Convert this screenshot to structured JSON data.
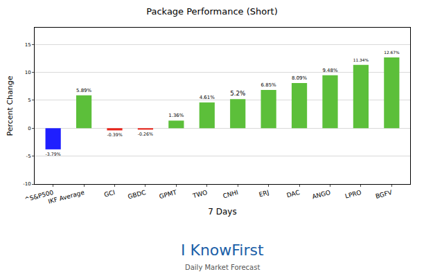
{
  "chart_data": {
    "type": "bar",
    "title": "Package Performance (Short)",
    "x_label": "7 Days",
    "y_label": "Percent Change",
    "categories": [
      "^S&P500",
      "IKF Average",
      "GCI",
      "GBDC",
      "GPMT",
      "TWO",
      "CNHI",
      "ERJ",
      "DAC",
      "ANGO",
      "LPRO",
      "BGFV"
    ],
    "values": [
      -3.79,
      5.89,
      -0.39,
      -0.26,
      1.36,
      4.61,
      5.2,
      6.85,
      8.09,
      9.48,
      11.34,
      12.67
    ],
    "value_labels": [
      "-3.79%",
      "5.89%",
      "-0.39%",
      "-0.26%",
      "1.36%",
      "4.61%",
      "5.2%",
      "6.85%",
      "8.09%",
      "9.48%",
      "11.34%",
      "12.67%"
    ],
    "colors": [
      "#1f1fff",
      "#5cbf3a",
      "#e8231a",
      "#e8231a",
      "#5cbf3a",
      "#5cbf3a",
      "#5cbf3a",
      "#5cbf3a",
      "#5cbf3a",
      "#5cbf3a",
      "#5cbf3a",
      "#5cbf3a"
    ],
    "ylim": [
      -10,
      18
    ],
    "yticks": [
      -10,
      -5,
      0,
      5,
      10,
      15
    ],
    "grid": true,
    "data_labels": true,
    "annotations": [
      "I KnowFirst",
      "Daily Market Forecast"
    ]
  }
}
